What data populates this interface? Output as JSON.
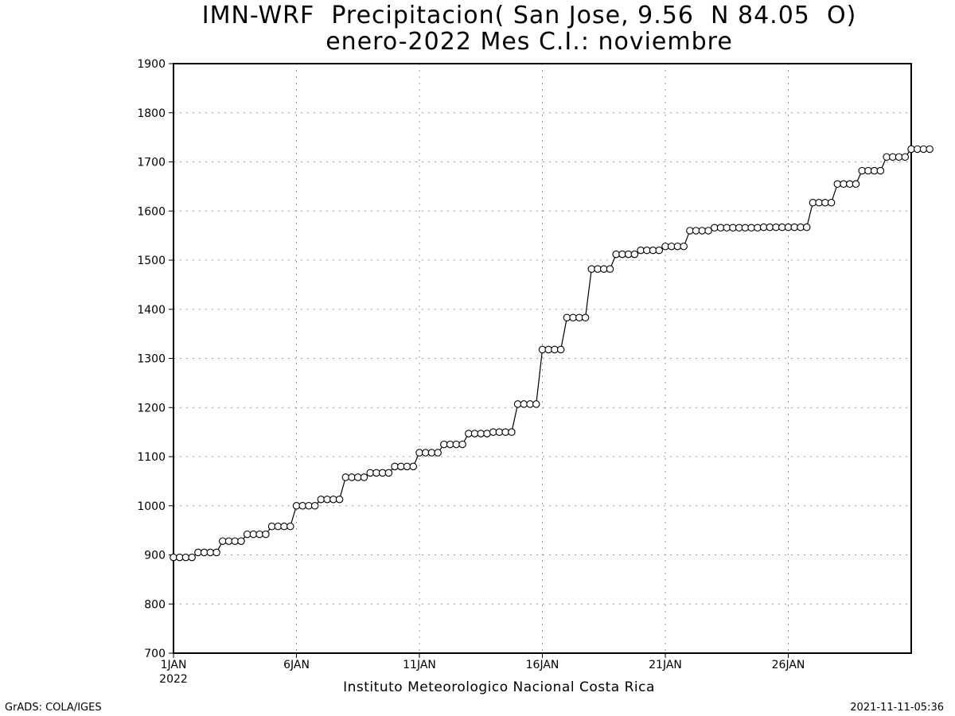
{
  "chart_data": {
    "type": "line",
    "title": "IMN-WRF  Precipitacion( San Jose, 9.56  N 84.05  O)",
    "subtitle": "enero-2022 Mes C.I.: noviembre",
    "xlabel": "Instituto Meteorologico Nacional Costa Rica",
    "ylabel": "",
    "ylim": [
      700,
      1900
    ],
    "yticks": [
      700,
      800,
      900,
      1000,
      1100,
      1200,
      1300,
      1400,
      1500,
      1600,
      1700,
      1800,
      1900
    ],
    "xlim": [
      1,
      31
    ],
    "xticks": [
      {
        "day": 1,
        "label": "1JAN",
        "sublabel": "2022"
      },
      {
        "day": 6,
        "label": "6JAN"
      },
      {
        "day": 11,
        "label": "11JAN"
      },
      {
        "day": 16,
        "label": "16JAN"
      },
      {
        "day": 21,
        "label": "21JAN"
      },
      {
        "day": 26,
        "label": "26JAN"
      }
    ],
    "grid": true,
    "x_step_days": 0.25,
    "x_start_day": 1,
    "series": [
      {
        "values": [
          895,
          895,
          895,
          895,
          905,
          905,
          905,
          905,
          928,
          928,
          928,
          928,
          942,
          942,
          942,
          942,
          958,
          958,
          958,
          958,
          1000,
          1000,
          1000,
          1000,
          1013,
          1013,
          1013,
          1013,
          1058,
          1058,
          1058,
          1058,
          1067,
          1067,
          1067,
          1067,
          1080,
          1080,
          1080,
          1080,
          1108,
          1108,
          1108,
          1108,
          1125,
          1125,
          1125,
          1125,
          1147,
          1147,
          1147,
          1147,
          1150,
          1150,
          1150,
          1150,
          1207,
          1207,
          1207,
          1207,
          1318,
          1318,
          1318,
          1318,
          1383,
          1383,
          1383,
          1383,
          1482,
          1482,
          1482,
          1482,
          1512,
          1512,
          1512,
          1512,
          1520,
          1520,
          1520,
          1520,
          1528,
          1528,
          1528,
          1528,
          1560,
          1560,
          1560,
          1560,
          1566,
          1566,
          1566,
          1566,
          1566,
          1566,
          1566,
          1566,
          1567,
          1567,
          1567,
          1567,
          1567,
          1567,
          1567,
          1567,
          1617,
          1617,
          1617,
          1617,
          1655,
          1655,
          1655,
          1655,
          1682,
          1682,
          1682,
          1682,
          1710,
          1710,
          1710,
          1710,
          1726,
          1726,
          1726,
          1726
        ]
      }
    ]
  },
  "footer": {
    "credit": "GrADS: COLA/IGES",
    "timestamp": "2021-11-11-05:36"
  }
}
